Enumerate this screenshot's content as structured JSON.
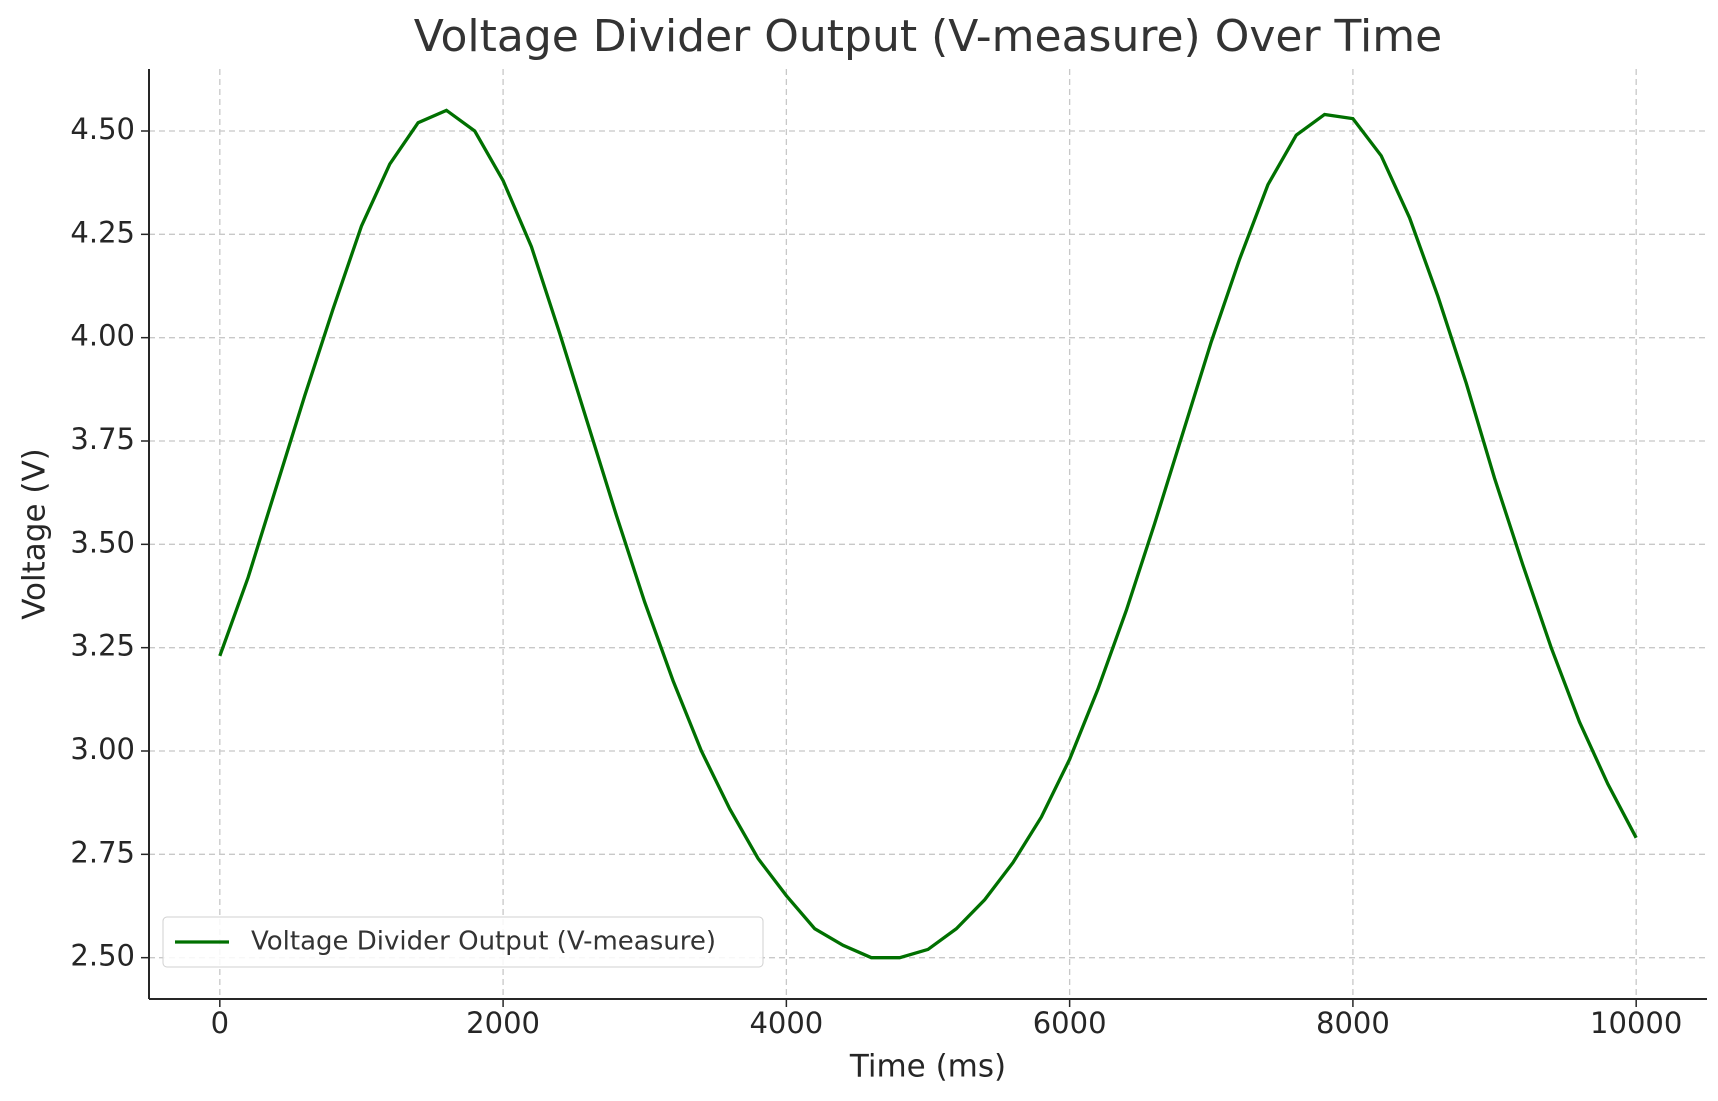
{
  "chart_data": {
    "type": "line",
    "title": "Voltage Divider Output (V-measure) Over Time",
    "x_label": "Time (ms)",
    "y_label": "Voltage (V)",
    "x": [
      0,
      200,
      400,
      600,
      800,
      1000,
      1200,
      1400,
      1600,
      1800,
      2000,
      2200,
      2400,
      2600,
      2800,
      3000,
      3200,
      3400,
      3600,
      3800,
      4000,
      4200,
      4400,
      4600,
      4800,
      5000,
      5200,
      5400,
      5600,
      5800,
      6000,
      6200,
      6400,
      6600,
      6800,
      7000,
      7200,
      7400,
      7600,
      7800,
      8000,
      8200,
      8400,
      8600,
      8800,
      9000,
      9200,
      9400,
      9600,
      9800,
      10000
    ],
    "series": [
      {
        "name": "Voltage Divider Output (V-measure)",
        "color": "#007000",
        "values": [
          3.23,
          3.42,
          3.64,
          3.86,
          4.07,
          4.27,
          4.42,
          4.52,
          4.55,
          4.5,
          4.38,
          4.22,
          4.01,
          3.79,
          3.57,
          3.36,
          3.17,
          3.0,
          2.86,
          2.74,
          2.65,
          2.57,
          2.53,
          2.5,
          2.5,
          2.52,
          2.57,
          2.64,
          2.73,
          2.84,
          2.98,
          3.15,
          3.34,
          3.55,
          3.77,
          3.99,
          4.19,
          4.37,
          4.49,
          4.54,
          4.53,
          4.44,
          4.29,
          4.1,
          3.89,
          3.66,
          3.45,
          3.25,
          3.07,
          2.92,
          2.79
        ]
      }
    ],
    "xlim": [
      -500,
      10500
    ],
    "xticks": [
      0,
      2000,
      4000,
      6000,
      8000,
      10000
    ],
    "ylim": [
      2.4,
      4.65
    ],
    "yticks": [
      {
        "value": 2.5,
        "label": "2.50"
      },
      {
        "value": 2.75,
        "label": "2.75"
      },
      {
        "value": 3,
        "label": "3.00"
      },
      {
        "value": 3.25,
        "label": "3.25"
      },
      {
        "value": 3.5,
        "label": "3.50"
      },
      {
        "value": 3.75,
        "label": "3.75"
      },
      {
        "value": 4,
        "label": "4.00"
      },
      {
        "value": 4.25,
        "label": "4.25"
      },
      {
        "value": 4.5,
        "label": "4.50"
      }
    ],
    "grid": true,
    "legend": "lower left"
  }
}
